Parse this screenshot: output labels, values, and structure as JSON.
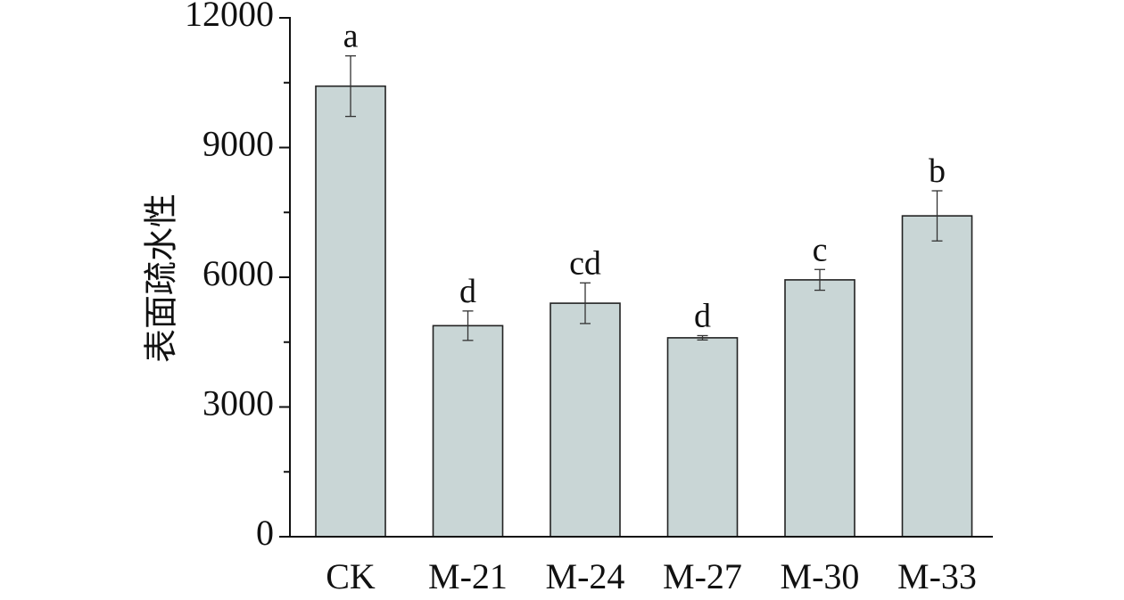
{
  "chart_data": {
    "type": "bar",
    "categories": [
      "CK",
      "M-21",
      "M-24",
      "M-27",
      "M-30",
      "M-33"
    ],
    "values": [
      10420,
      4880,
      5400,
      4600,
      5940,
      7420
    ],
    "errors": [
      700,
      340,
      470,
      50,
      240,
      580
    ],
    "significance": [
      "a",
      "d",
      "cd",
      "d",
      "c",
      "b"
    ],
    "ylabel": "表面疏水性",
    "ylim": [
      0,
      12000
    ],
    "yticks": [
      0,
      3000,
      6000,
      9000,
      12000
    ],
    "ytick_labels": [
      "0",
      "3000",
      "6000",
      "9000",
      "12000"
    ],
    "grid": false,
    "colors": {
      "bar_fill": "#c9d6d6",
      "bar_stroke": "#222222"
    }
  }
}
